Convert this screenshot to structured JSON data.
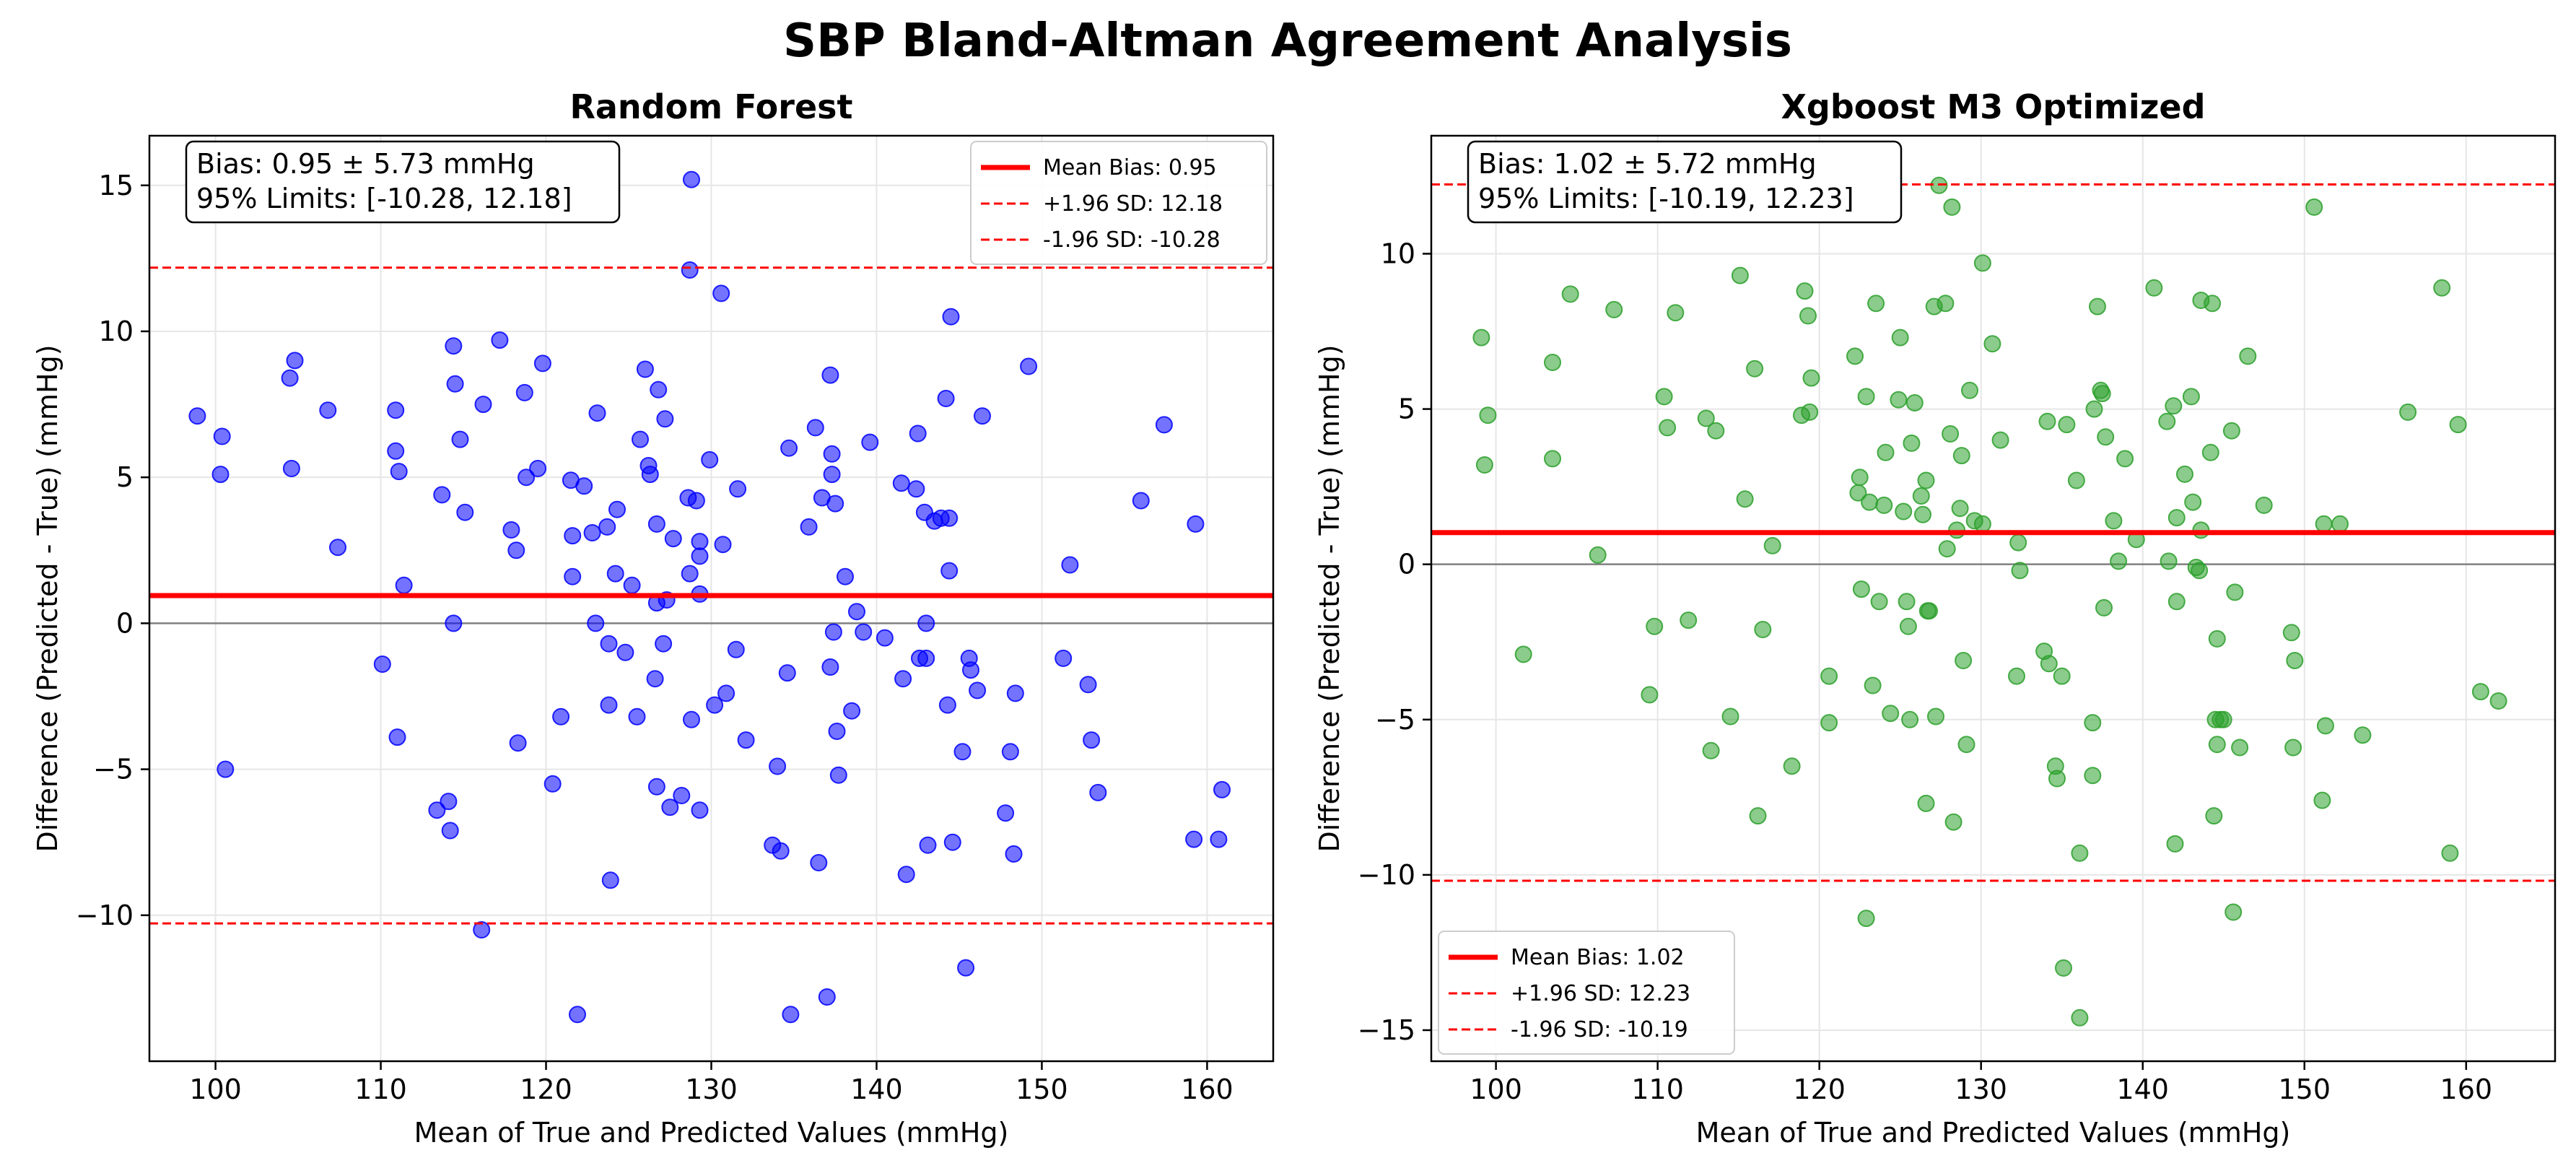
{
  "suptitle": "SBP Bland-Altman Agreement Analysis",
  "colors": {
    "rf_points": "#0000ff",
    "xgb_points": "#2ca02c",
    "bias_line": "#ff0000",
    "zero_line": "#808080",
    "grid": "#e6e6e6"
  },
  "chart_data": [
    {
      "type": "scatter",
      "title": "Random Forest",
      "xlabel": "Mean of True and Predicted Values (mmHg)",
      "ylabel": "Difference (Predicted - True) (mmHg)",
      "xlim": [
        96,
        164
      ],
      "ylim": [
        -15,
        16.7
      ],
      "xticks": [
        100,
        110,
        120,
        130,
        140,
        150,
        160
      ],
      "yticks": [
        -10,
        -5,
        0,
        5,
        10,
        15
      ],
      "grid": true,
      "point_color": "#0000ff",
      "bias": 0.95,
      "upper_loa": 12.18,
      "lower_loa": -10.28,
      "legend_position": "top-right",
      "legend": [
        "Mean Bias: 0.95",
        "+1.96 SD: 12.18",
        "-1.96 SD: -10.28"
      ],
      "annotation": [
        "Bias: 0.95 ± 5.73 mmHg",
        "95% Limits: [-10.28, 12.18]"
      ],
      "points": [
        [
          98.9,
          7.1
        ],
        [
          100.4,
          6.4
        ],
        [
          100.3,
          5.1
        ],
        [
          100.6,
          -5.0
        ],
        [
          104.5,
          8.4
        ],
        [
          104.8,
          9.0
        ],
        [
          104.6,
          5.3
        ],
        [
          106.8,
          7.3
        ],
        [
          107.4,
          2.6
        ],
        [
          110.1,
          -1.4
        ],
        [
          110.9,
          7.3
        ],
        [
          110.9,
          5.9
        ],
        [
          111.1,
          5.2
        ],
        [
          111.4,
          1.3
        ],
        [
          111.0,
          -3.9
        ],
        [
          113.4,
          -6.4
        ],
        [
          113.7,
          4.4
        ],
        [
          114.1,
          -6.1
        ],
        [
          114.2,
          -7.1
        ],
        [
          114.4,
          9.5
        ],
        [
          114.4,
          0.0
        ],
        [
          114.5,
          8.2
        ],
        [
          114.8,
          6.3
        ],
        [
          115.1,
          3.8
        ],
        [
          116.2,
          7.5
        ],
        [
          116.1,
          -10.5
        ],
        [
          117.2,
          9.7
        ],
        [
          117.9,
          3.2
        ],
        [
          118.2,
          2.5
        ],
        [
          118.3,
          -4.1
        ],
        [
          118.7,
          7.9
        ],
        [
          118.8,
          5.0
        ],
        [
          119.5,
          5.3
        ],
        [
          119.8,
          8.9
        ],
        [
          120.4,
          -5.5
        ],
        [
          120.9,
          -3.2
        ],
        [
          121.5,
          4.9
        ],
        [
          121.6,
          1.6
        ],
        [
          121.6,
          3.0
        ],
        [
          121.9,
          -13.4
        ],
        [
          122.3,
          4.7
        ],
        [
          122.8,
          3.1
        ],
        [
          123.0,
          0.0
        ],
        [
          123.1,
          7.2
        ],
        [
          123.7,
          3.3
        ],
        [
          123.8,
          -0.7
        ],
        [
          123.8,
          -2.8
        ],
        [
          123.9,
          -8.8
        ],
        [
          124.2,
          1.7
        ],
        [
          124.3,
          3.9
        ],
        [
          124.8,
          -1.0
        ],
        [
          125.2,
          1.3
        ],
        [
          125.5,
          -3.2
        ],
        [
          125.7,
          6.3
        ],
        [
          126.0,
          8.7
        ],
        [
          126.2,
          5.4
        ],
        [
          126.3,
          5.1
        ],
        [
          126.6,
          -1.9
        ],
        [
          126.7,
          0.7
        ],
        [
          126.7,
          3.4
        ],
        [
          126.7,
          -5.6
        ],
        [
          126.8,
          8.0
        ],
        [
          127.1,
          -0.7
        ],
        [
          127.2,
          7.0
        ],
        [
          127.3,
          0.8
        ],
        [
          127.5,
          -6.3
        ],
        [
          127.7,
          2.9
        ],
        [
          128.2,
          -5.9
        ],
        [
          128.6,
          4.3
        ],
        [
          128.7,
          1.7
        ],
        [
          128.7,
          12.1
        ],
        [
          128.8,
          15.2
        ],
        [
          128.8,
          -3.3
        ],
        [
          129.1,
          4.2
        ],
        [
          129.3,
          2.3
        ],
        [
          129.3,
          2.8
        ],
        [
          129.3,
          1.0
        ],
        [
          129.3,
          -6.4
        ],
        [
          129.9,
          5.6
        ],
        [
          130.2,
          -2.8
        ],
        [
          130.6,
          11.3
        ],
        [
          130.7,
          2.7
        ],
        [
          130.9,
          -2.4
        ],
        [
          131.5,
          -0.9
        ],
        [
          131.6,
          4.6
        ],
        [
          132.1,
          -4.0
        ],
        [
          133.7,
          -7.6
        ],
        [
          134.0,
          -4.9
        ],
        [
          134.2,
          -7.8
        ],
        [
          134.6,
          -1.7
        ],
        [
          134.7,
          6.0
        ],
        [
          134.8,
          -13.4
        ],
        [
          135.9,
          3.3
        ],
        [
          136.3,
          6.7
        ],
        [
          136.5,
          -8.2
        ],
        [
          136.7,
          4.3
        ],
        [
          137.0,
          -12.8
        ],
        [
          137.2,
          8.5
        ],
        [
          137.2,
          -1.5
        ],
        [
          137.3,
          5.8
        ],
        [
          137.3,
          5.1
        ],
        [
          137.4,
          -0.3
        ],
        [
          137.5,
          4.1
        ],
        [
          137.6,
          -3.7
        ],
        [
          137.7,
          -5.2
        ],
        [
          138.1,
          1.6
        ],
        [
          138.5,
          -3.0
        ],
        [
          138.8,
          0.4
        ],
        [
          139.2,
          -0.3
        ],
        [
          139.6,
          6.2
        ],
        [
          140.5,
          -0.5
        ],
        [
          141.5,
          4.8
        ],
        [
          141.6,
          -1.9
        ],
        [
          141.8,
          -8.6
        ],
        [
          142.4,
          4.6
        ],
        [
          142.5,
          6.5
        ],
        [
          142.6,
          -1.2
        ],
        [
          142.9,
          3.8
        ],
        [
          143.0,
          -1.2
        ],
        [
          143.0,
          0.0
        ],
        [
          143.1,
          -7.6
        ],
        [
          143.5,
          3.5
        ],
        [
          143.9,
          3.6
        ],
        [
          144.2,
          7.7
        ],
        [
          144.3,
          -2.8
        ],
        [
          144.4,
          1.8
        ],
        [
          144.4,
          3.6
        ],
        [
          144.5,
          10.5
        ],
        [
          144.6,
          -7.5
        ],
        [
          145.2,
          -4.4
        ],
        [
          145.4,
          -11.8
        ],
        [
          145.6,
          -1.2
        ],
        [
          145.7,
          -1.6
        ],
        [
          146.1,
          -2.3
        ],
        [
          146.4,
          7.1
        ],
        [
          147.8,
          -6.5
        ],
        [
          148.1,
          -4.4
        ],
        [
          148.3,
          -7.9
        ],
        [
          148.4,
          -2.4
        ],
        [
          149.2,
          8.8
        ],
        [
          151.3,
          -1.2
        ],
        [
          151.7,
          2.0
        ],
        [
          152.8,
          -2.1
        ],
        [
          153.0,
          -4.0
        ],
        [
          153.4,
          -5.8
        ],
        [
          156.0,
          4.2
        ],
        [
          157.4,
          6.8
        ],
        [
          159.2,
          -7.4
        ],
        [
          159.3,
          3.4
        ],
        [
          160.7,
          -7.4
        ],
        [
          160.9,
          -5.7
        ]
      ]
    },
    {
      "type": "scatter",
      "title": "Xgboost M3 Optimized",
      "xlabel": "Mean of True and Predicted Values (mmHg)",
      "ylabel": "Difference (Predicted - True) (mmHg)",
      "xlim": [
        96,
        165.5
      ],
      "ylim": [
        -16,
        13.8
      ],
      "xticks": [
        100,
        110,
        120,
        130,
        140,
        150,
        160
      ],
      "yticks": [
        -15,
        -10,
        -5,
        0,
        5,
        10
      ],
      "grid": true,
      "point_color": "#2ca02c",
      "bias": 1.02,
      "upper_loa": 12.23,
      "lower_loa": -10.19,
      "legend_position": "bottom-left",
      "legend": [
        "Mean Bias: 1.02",
        "+1.96 SD: 12.23",
        "-1.96 SD: -10.19"
      ],
      "annotation": [
        "Bias: 1.02 ± 5.72 mmHg",
        "95% Limits: [-10.19, 12.23]"
      ],
      "points": [
        [
          99.1,
          7.3
        ],
        [
          99.5,
          4.8
        ],
        [
          99.3,
          3.2
        ],
        [
          101.7,
          -2.9
        ],
        [
          103.5,
          6.5
        ],
        [
          103.5,
          3.4
        ],
        [
          104.6,
          8.7
        ],
        [
          106.3,
          0.3
        ],
        [
          107.3,
          8.2
        ],
        [
          109.5,
          -4.2
        ],
        [
          109.8,
          -2.0
        ],
        [
          110.4,
          5.4
        ],
        [
          110.6,
          4.4
        ],
        [
          111.1,
          8.1
        ],
        [
          111.9,
          -1.8
        ],
        [
          113.0,
          4.7
        ],
        [
          113.3,
          -6.0
        ],
        [
          113.6,
          4.3
        ],
        [
          114.5,
          -4.9
        ],
        [
          115.1,
          9.3
        ],
        [
          115.4,
          2.1
        ],
        [
          116.0,
          6.3
        ],
        [
          116.2,
          -8.1
        ],
        [
          116.5,
          -2.1
        ],
        [
          117.1,
          0.6
        ],
        [
          118.3,
          -6.5
        ],
        [
          118.9,
          4.8
        ],
        [
          119.1,
          8.8
        ],
        [
          119.3,
          8.0
        ],
        [
          119.4,
          4.9
        ],
        [
          119.5,
          6.0
        ],
        [
          120.6,
          -3.6
        ],
        [
          120.6,
          -5.1
        ],
        [
          122.2,
          6.7
        ],
        [
          122.4,
          2.3
        ],
        [
          122.5,
          2.8
        ],
        [
          122.6,
          -0.8
        ],
        [
          122.9,
          -11.4
        ],
        [
          122.9,
          5.4
        ],
        [
          123.1,
          2.0
        ],
        [
          123.3,
          -3.9
        ],
        [
          123.5,
          8.4
        ],
        [
          123.7,
          -1.2
        ],
        [
          124.0,
          1.9
        ],
        [
          124.1,
          3.6
        ],
        [
          124.4,
          -4.8
        ],
        [
          124.9,
          5.3
        ],
        [
          125.0,
          7.3
        ],
        [
          125.2,
          1.7
        ],
        [
          125.4,
          -1.2
        ],
        [
          125.5,
          -2.0
        ],
        [
          125.6,
          -5.0
        ],
        [
          125.7,
          3.9
        ],
        [
          125.9,
          5.2
        ],
        [
          126.3,
          2.2
        ],
        [
          126.4,
          1.6
        ],
        [
          126.6,
          2.7
        ],
        [
          126.6,
          -7.7
        ],
        [
          126.7,
          -1.5
        ],
        [
          126.8,
          -1.5
        ],
        [
          127.1,
          8.3
        ],
        [
          127.2,
          -4.9
        ],
        [
          127.4,
          12.2
        ],
        [
          127.8,
          8.4
        ],
        [
          127.9,
          0.5
        ],
        [
          128.1,
          4.2
        ],
        [
          128.2,
          11.5
        ],
        [
          128.3,
          -8.3
        ],
        [
          128.5,
          1.1
        ],
        [
          128.7,
          1.8
        ],
        [
          128.8,
          3.5
        ],
        [
          128.9,
          -3.1
        ],
        [
          129.1,
          -5.8
        ],
        [
          129.3,
          5.6
        ],
        [
          129.6,
          1.4
        ],
        [
          130.1,
          9.7
        ],
        [
          130.1,
          1.3
        ],
        [
          130.7,
          7.1
        ],
        [
          131.2,
          4.0
        ],
        [
          132.2,
          -3.6
        ],
        [
          132.3,
          0.7
        ],
        [
          132.4,
          -0.2
        ],
        [
          133.9,
          -2.8
        ],
        [
          134.1,
          4.6
        ],
        [
          134.2,
          -3.2
        ],
        [
          134.6,
          -6.5
        ],
        [
          134.7,
          -6.9
        ],
        [
          135.0,
          -3.6
        ],
        [
          135.3,
          4.5
        ],
        [
          135.1,
          -13.0
        ],
        [
          135.9,
          2.7
        ],
        [
          136.1,
          -9.3
        ],
        [
          136.1,
          -14.6
        ],
        [
          136.9,
          -5.1
        ],
        [
          136.9,
          -6.8
        ],
        [
          137.0,
          5.0
        ],
        [
          137.2,
          8.3
        ],
        [
          137.4,
          5.6
        ],
        [
          137.5,
          5.5
        ],
        [
          137.6,
          -1.4
        ],
        [
          137.7,
          4.1
        ],
        [
          138.2,
          1.4
        ],
        [
          138.5,
          0.1
        ],
        [
          138.9,
          3.4
        ],
        [
          139.6,
          0.8
        ],
        [
          140.7,
          8.9
        ],
        [
          141.5,
          4.6
        ],
        [
          141.6,
          0.1
        ],
        [
          141.9,
          5.1
        ],
        [
          142.0,
          -9.0
        ],
        [
          142.1,
          1.5
        ],
        [
          142.1,
          -1.2
        ],
        [
          142.6,
          2.9
        ],
        [
          143.0,
          5.4
        ],
        [
          143.1,
          2.0
        ],
        [
          143.3,
          -0.1
        ],
        [
          143.5,
          -0.2
        ],
        [
          143.6,
          8.5
        ],
        [
          143.6,
          1.1
        ],
        [
          144.2,
          3.6
        ],
        [
          144.3,
          8.4
        ],
        [
          144.4,
          -8.1
        ],
        [
          144.5,
          -5.0
        ],
        [
          144.6,
          -5.8
        ],
        [
          144.6,
          -2.4
        ],
        [
          144.8,
          -5.0
        ],
        [
          145.0,
          -5.0
        ],
        [
          145.5,
          4.3
        ],
        [
          145.6,
          -11.2
        ],
        [
          145.7,
          -0.9
        ],
        [
          146.0,
          -5.9
        ],
        [
          146.5,
          6.7
        ],
        [
          147.5,
          1.9
        ],
        [
          149.2,
          -2.2
        ],
        [
          149.3,
          -5.9
        ],
        [
          149.4,
          -3.1
        ],
        [
          150.6,
          11.5
        ],
        [
          151.1,
          -7.6
        ],
        [
          151.2,
          1.3
        ],
        [
          151.3,
          -5.2
        ],
        [
          152.2,
          1.3
        ],
        [
          153.6,
          -5.5
        ],
        [
          156.4,
          4.9
        ],
        [
          158.5,
          8.9
        ],
        [
          159.0,
          -9.3
        ],
        [
          159.5,
          4.5
        ],
        [
          160.9,
          -4.1
        ],
        [
          162.0,
          -4.4
        ]
      ]
    }
  ]
}
